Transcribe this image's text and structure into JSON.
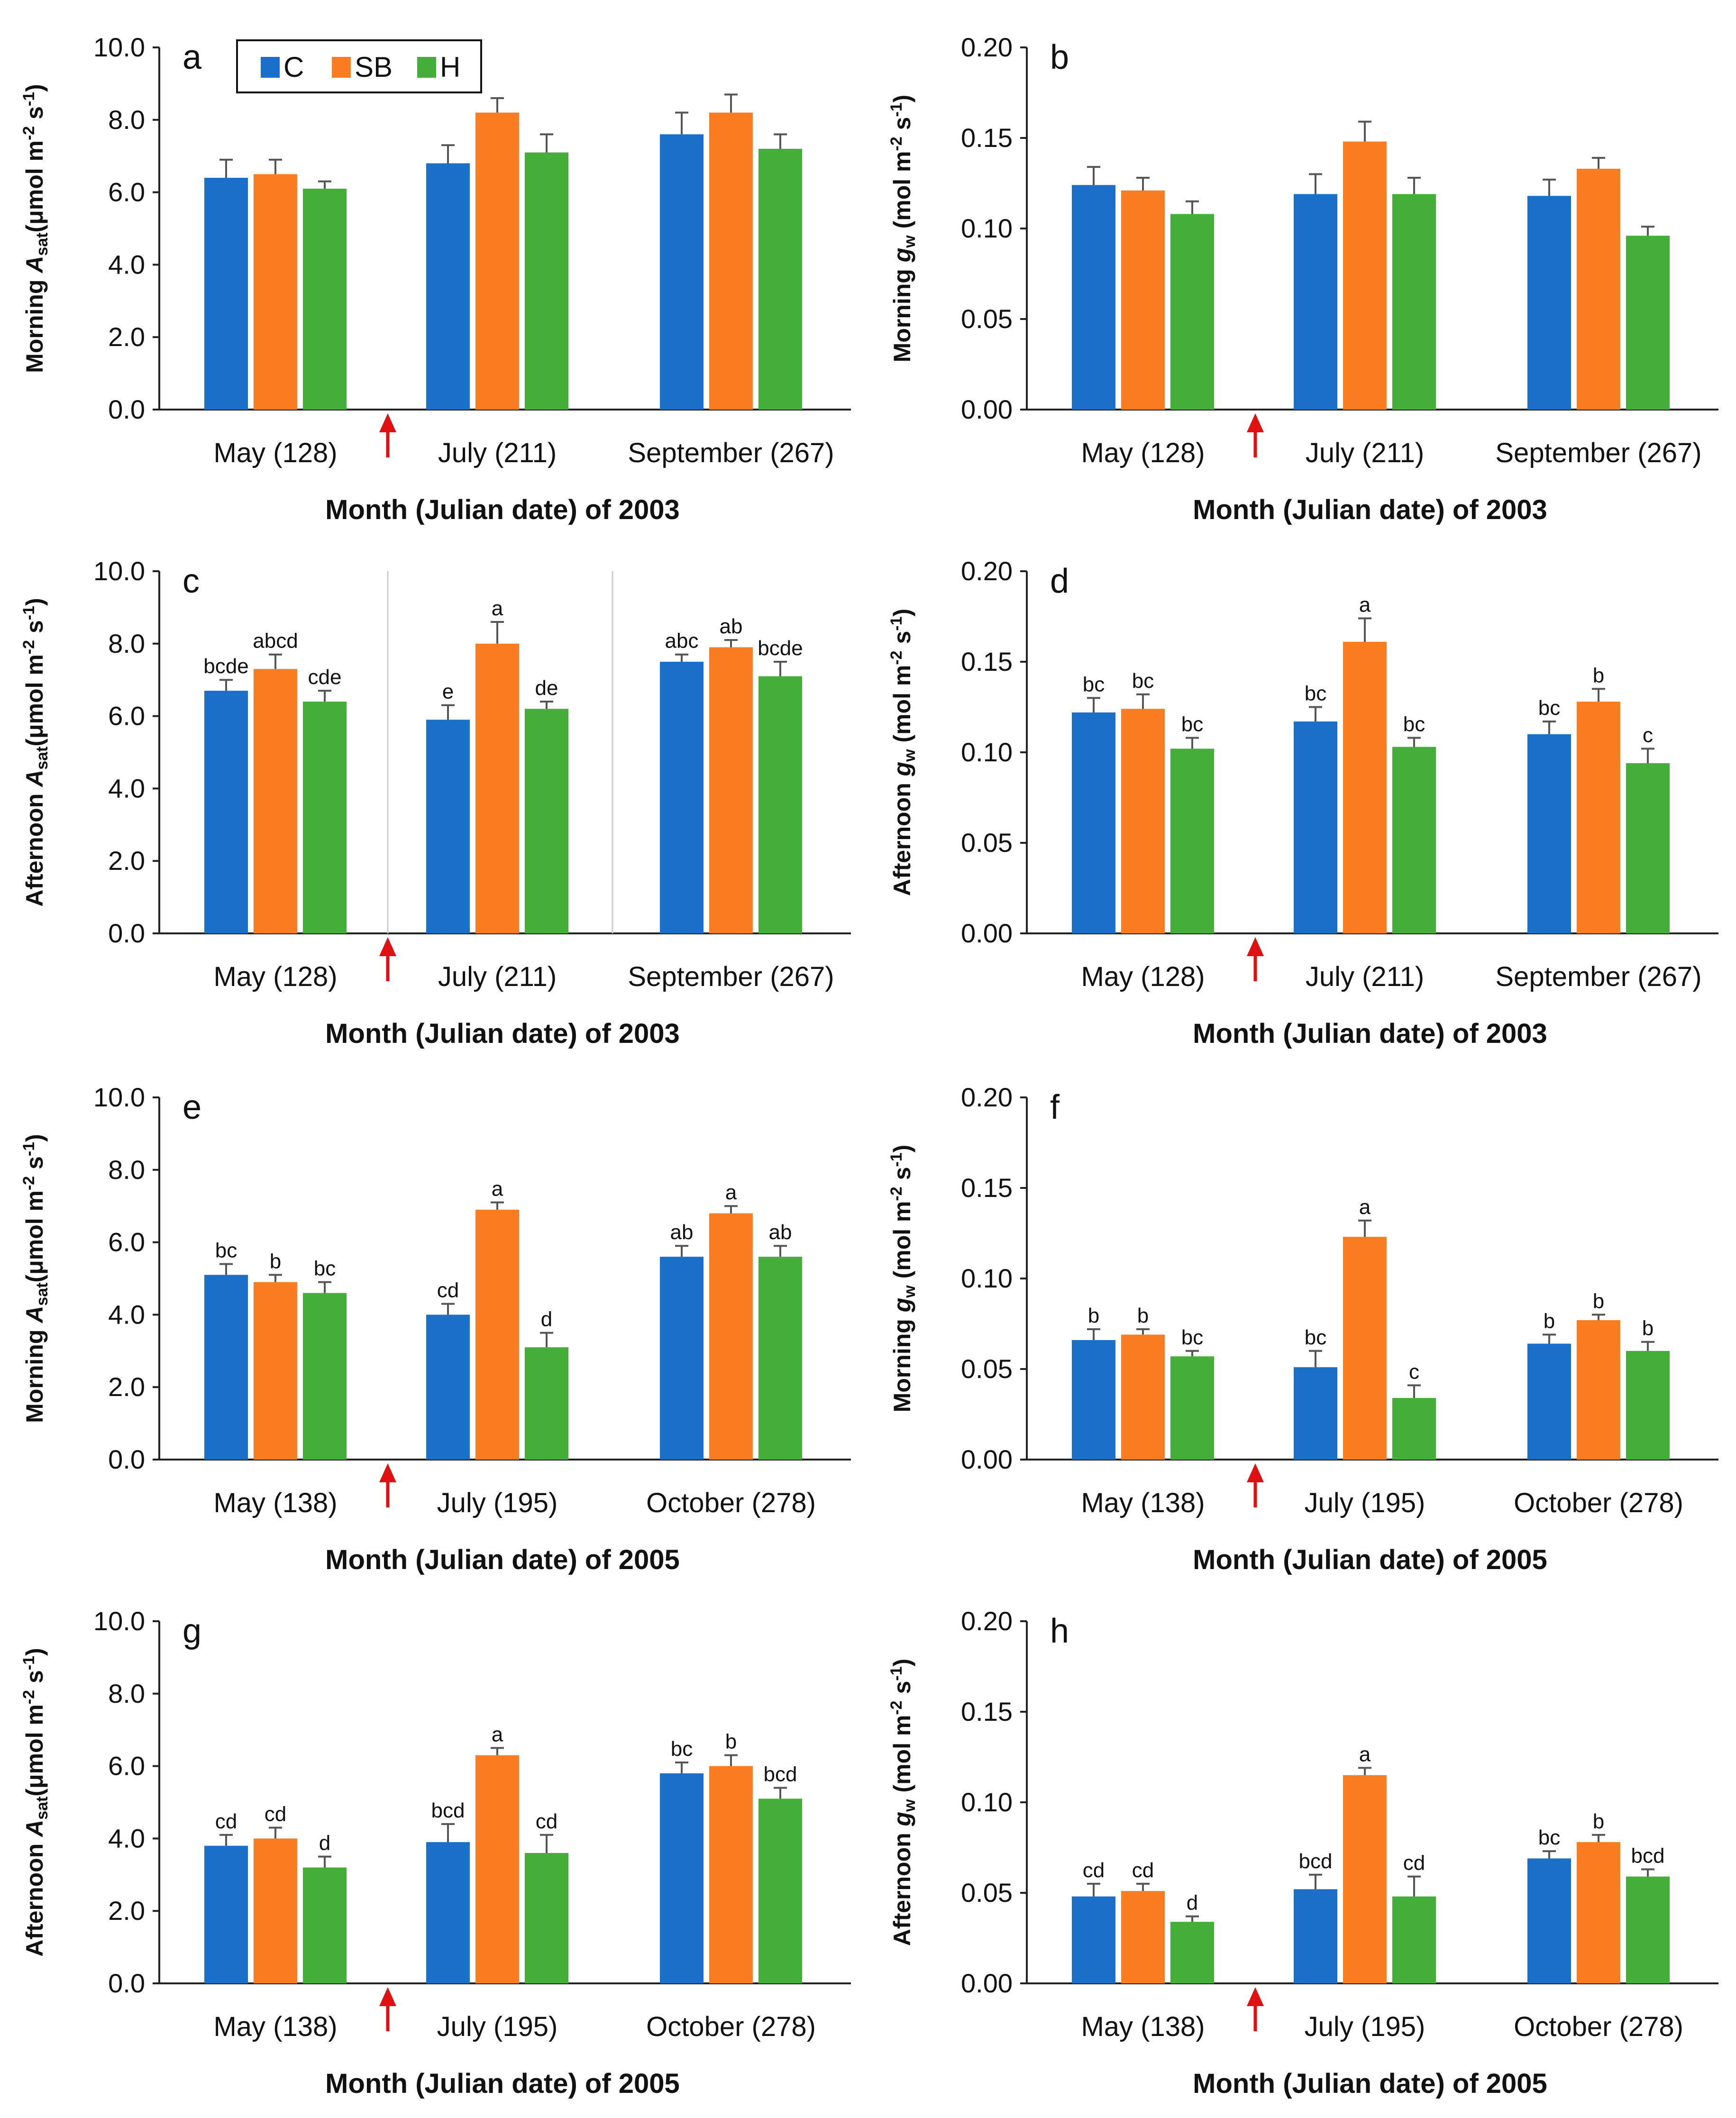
{
  "chart_data": {
    "type": "bar",
    "legend": {
      "placement": "top-left of panel a",
      "entries": [
        "C",
        "SB",
        "H"
      ]
    },
    "colors": {
      "C": "#1a70c8",
      "SB": "#fb7d21",
      "H": "#43ae38",
      "arrow": "#e01010"
    },
    "panels": [
      {
        "label": "a",
        "ylabel": {
          "t": "Morning ",
          "v": "A",
          "sub": "sat",
          "u": "(μmol m",
          "e1": "-2",
          "s": " s",
          "e2": "-1",
          "c": ")"
        },
        "ylim": [
          0,
          10
        ],
        "yticks": [
          "0.0",
          "2.0",
          "4.0",
          "6.0",
          "8.0",
          "10.0"
        ],
        "categories": [
          "May (128)",
          "July (211)",
          "September (267)"
        ],
        "xlabel": "Month (Julian date) of 2003",
        "series": [
          {
            "name": "C",
            "values": [
              6.4,
              6.8,
              7.6
            ],
            "errors": [
              0.5,
              0.5,
              0.6
            ],
            "letters": [
              "",
              "",
              ""
            ]
          },
          {
            "name": "SB",
            "values": [
              6.5,
              8.2,
              8.2
            ],
            "errors": [
              0.4,
              0.4,
              0.5
            ],
            "letters": [
              "",
              "",
              ""
            ]
          },
          {
            "name": "H",
            "values": [
              6.1,
              7.1,
              7.2
            ],
            "errors": [
              0.2,
              0.5,
              0.4
            ],
            "letters": [
              "",
              "",
              ""
            ]
          }
        ]
      },
      {
        "label": "b",
        "ylabel": {
          "t": "Morning ",
          "v": "g",
          "sub": "w",
          "u": " (mol m",
          "e1": "-2",
          "s": " s",
          "e2": "-1",
          "c": ")"
        },
        "ylim": [
          0,
          0.2
        ],
        "yticks": [
          "0.00",
          "0.05",
          "0.10",
          "0.15",
          "0.20"
        ],
        "categories": [
          "May (128)",
          "July (211)",
          "September (267)"
        ],
        "xlabel": "Month (Julian date) of 2003",
        "series": [
          {
            "name": "C",
            "values": [
              0.124,
              0.119,
              0.118
            ],
            "errors": [
              0.01,
              0.011,
              0.009
            ],
            "letters": [
              "",
              "",
              ""
            ]
          },
          {
            "name": "SB",
            "values": [
              0.121,
              0.148,
              0.133
            ],
            "errors": [
              0.007,
              0.011,
              0.006
            ],
            "letters": [
              "",
              "",
              ""
            ]
          },
          {
            "name": "H",
            "values": [
              0.108,
              0.119,
              0.096
            ],
            "errors": [
              0.007,
              0.009,
              0.005
            ],
            "letters": [
              "",
              "",
              ""
            ]
          }
        ]
      },
      {
        "label": "c",
        "ylabel": {
          "t": "Afternoon ",
          "v": "A",
          "sub": "sat",
          "u": "(μmol m",
          "e1": "-2",
          "s": " s",
          "e2": "-1",
          "c": ")"
        },
        "ylim": [
          0,
          10
        ],
        "yticks": [
          "0.0",
          "2.0",
          "4.0",
          "6.0",
          "8.0",
          "10.0"
        ],
        "separators": true,
        "categories": [
          "May (128)",
          "July (211)",
          "September (267)"
        ],
        "xlabel": "Month (Julian date) of 2003",
        "series": [
          {
            "name": "C",
            "values": [
              6.7,
              5.9,
              7.5
            ],
            "errors": [
              0.3,
              0.4,
              0.2
            ],
            "letters": [
              "bcde",
              "e",
              "abc"
            ]
          },
          {
            "name": "SB",
            "values": [
              7.3,
              8.0,
              7.9
            ],
            "errors": [
              0.4,
              0.6,
              0.2
            ],
            "letters": [
              "abcd",
              "a",
              "ab"
            ]
          },
          {
            "name": "H",
            "values": [
              6.4,
              6.2,
              7.1
            ],
            "errors": [
              0.3,
              0.2,
              0.4
            ],
            "letters": [
              "cde",
              "de",
              "bcde"
            ]
          }
        ]
      },
      {
        "label": "d",
        "ylabel": {
          "t": "Afternoon ",
          "v": "g",
          "sub": "w",
          "u": "  (mol m",
          "e1": "-2",
          "s": " s",
          "e2": "-1",
          "c": ")"
        },
        "ylim": [
          0,
          0.2
        ],
        "yticks": [
          "0.00",
          "0.05",
          "0.10",
          "0.15",
          "0.20"
        ],
        "categories": [
          "May (128)",
          "July (211)",
          "September (267)"
        ],
        "xlabel": "Month (Julian date) of 2003",
        "series": [
          {
            "name": "C",
            "values": [
              0.122,
              0.117,
              0.11
            ],
            "errors": [
              0.008,
              0.008,
              0.007
            ],
            "letters": [
              "bc",
              "bc",
              "bc"
            ]
          },
          {
            "name": "SB",
            "values": [
              0.124,
              0.161,
              0.128
            ],
            "errors": [
              0.008,
              0.013,
              0.007
            ],
            "letters": [
              "bc",
              "a",
              "b"
            ]
          },
          {
            "name": "H",
            "values": [
              0.102,
              0.103,
              0.094
            ],
            "errors": [
              0.006,
              0.005,
              0.008
            ],
            "letters": [
              "bc",
              "bc",
              "c"
            ]
          }
        ]
      },
      {
        "label": "e",
        "ylabel": {
          "t": "Morning ",
          "v": "A",
          "sub": "sat",
          "u": "(μmol m",
          "e1": "-2",
          "s": " s",
          "e2": "-1",
          "c": ")"
        },
        "ylim": [
          0,
          10
        ],
        "yticks": [
          "0.0",
          "2.0",
          "4.0",
          "6.0",
          "8.0",
          "10.0"
        ],
        "categories": [
          "May (138)",
          "July (195)",
          "October (278)"
        ],
        "xlabel": "Month (Julian date) of 2005",
        "series": [
          {
            "name": "C",
            "values": [
              5.1,
              4.0,
              5.6
            ],
            "errors": [
              0.3,
              0.3,
              0.3
            ],
            "letters": [
              "bc",
              "cd",
              "ab"
            ]
          },
          {
            "name": "SB",
            "values": [
              4.9,
              6.9,
              6.8
            ],
            "errors": [
              0.2,
              0.2,
              0.2
            ],
            "letters": [
              "b",
              "a",
              "a"
            ]
          },
          {
            "name": "H",
            "values": [
              4.6,
              3.1,
              5.6
            ],
            "errors": [
              0.3,
              0.4,
              0.3
            ],
            "letters": [
              "bc",
              "d",
              "ab"
            ]
          }
        ]
      },
      {
        "label": "f",
        "ylabel": {
          "t": "Morning ",
          "v": "g",
          "sub": "w",
          "u": " (mol m",
          "e1": "-2",
          "s": " s",
          "e2": "-1",
          "c": ")"
        },
        "ylim": [
          0,
          0.2
        ],
        "yticks": [
          "0.00",
          "0.05",
          "0.10",
          "0.15",
          "0.20"
        ],
        "categories": [
          "May (138)",
          "July (195)",
          "October (278)"
        ],
        "xlabel": "Month (Julian date) of 2005",
        "series": [
          {
            "name": "C",
            "values": [
              0.066,
              0.051,
              0.064
            ],
            "errors": [
              0.006,
              0.009,
              0.005
            ],
            "letters": [
              "b",
              "bc",
              "b"
            ]
          },
          {
            "name": "SB",
            "values": [
              0.069,
              0.123,
              0.077
            ],
            "errors": [
              0.003,
              0.009,
              0.003
            ],
            "letters": [
              "b",
              "a",
              "b"
            ]
          },
          {
            "name": "H",
            "values": [
              0.057,
              0.034,
              0.06
            ],
            "errors": [
              0.003,
              0.007,
              0.005
            ],
            "letters": [
              "bc",
              "c",
              "b"
            ]
          }
        ]
      },
      {
        "label": "g",
        "ylabel": {
          "t": "Afternoon ",
          "v": "A",
          "sub": "sat",
          "u": "(μmol m",
          "e1": "-2",
          "s": " s",
          "e2": "-1",
          "c": ")"
        },
        "ylim": [
          0,
          10
        ],
        "yticks": [
          "0.0",
          "2.0",
          "4.0",
          "6.0",
          "8.0",
          "10.0"
        ],
        "categories": [
          "May (138)",
          "July (195)",
          "October (278)"
        ],
        "xlabel": "Month (Julian date) of 2005",
        "series": [
          {
            "name": "C",
            "values": [
              3.8,
              3.9,
              5.8
            ],
            "errors": [
              0.3,
              0.5,
              0.3
            ],
            "letters": [
              "cd",
              "bcd",
              "bc"
            ]
          },
          {
            "name": "SB",
            "values": [
              4.0,
              6.3,
              6.0
            ],
            "errors": [
              0.3,
              0.2,
              0.3
            ],
            "letters": [
              "cd",
              "a",
              "b"
            ]
          },
          {
            "name": "H",
            "values": [
              3.2,
              3.6,
              5.1
            ],
            "errors": [
              0.3,
              0.5,
              0.3
            ],
            "letters": [
              "d",
              "cd",
              "bcd"
            ]
          }
        ]
      },
      {
        "label": "h",
        "ylabel": {
          "t": "Afternoon ",
          "v": "g",
          "sub": "w",
          "u": " (mol m",
          "e1": "-2",
          "s": " s",
          "e2": "-1",
          "c": ")"
        },
        "ylim": [
          0,
          0.2
        ],
        "yticks": [
          "0.00",
          "0.05",
          "0.10",
          "0.15",
          "0.20"
        ],
        "categories": [
          "May (138)",
          "July (195)",
          "October (278)"
        ],
        "xlabel": "Month (Julian date) of 2005",
        "series": [
          {
            "name": "C",
            "values": [
              0.048,
              0.052,
              0.069
            ],
            "errors": [
              0.007,
              0.008,
              0.004
            ],
            "letters": [
              "cd",
              "bcd",
              "bc"
            ]
          },
          {
            "name": "SB",
            "values": [
              0.051,
              0.115,
              0.078
            ],
            "errors": [
              0.004,
              0.004,
              0.004
            ],
            "letters": [
              "cd",
              "a",
              "b"
            ]
          },
          {
            "name": "H",
            "values": [
              0.034,
              0.048,
              0.059
            ],
            "errors": [
              0.003,
              0.011,
              0.004
            ],
            "letters": [
              "d",
              "cd",
              "bcd"
            ]
          }
        ]
      }
    ]
  }
}
